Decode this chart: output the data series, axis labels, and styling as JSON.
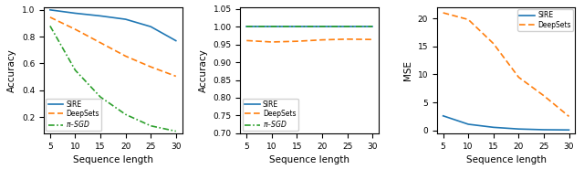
{
  "x": [
    5,
    10,
    15,
    20,
    25,
    30
  ],
  "plot1": {
    "ylabel": "Accuracy",
    "xlabel": "Sequence length",
    "ylim": [
      0.08,
      1.02
    ],
    "sire": [
      1.0,
      0.975,
      0.955,
      0.93,
      0.875,
      0.77
    ],
    "deepsets": [
      0.945,
      0.855,
      0.755,
      0.655,
      0.575,
      0.505
    ],
    "pisgd": [
      0.88,
      0.55,
      0.35,
      0.22,
      0.135,
      0.095
    ],
    "yticks": [
      0.2,
      0.4,
      0.6,
      0.8,
      1.0
    ]
  },
  "plot2": {
    "ylabel": "Accuracy",
    "xlabel": "Sequence length",
    "ylim": [
      0.7,
      1.055
    ],
    "sire": [
      1.0,
      1.0,
      1.0,
      1.0,
      1.0,
      1.0
    ],
    "deepsets": [
      0.961,
      0.957,
      0.959,
      0.963,
      0.965,
      0.964
    ],
    "pisgd": [
      1.0,
      1.0,
      1.0,
      1.0,
      1.0,
      1.0
    ],
    "yticks": [
      0.7,
      0.75,
      0.8,
      0.85,
      0.9,
      0.95,
      1.0,
      1.05
    ]
  },
  "plot3": {
    "ylabel": "MSE",
    "xlabel": "Sequence length",
    "ylim": [
      -0.5,
      22.0
    ],
    "sire": [
      2.6,
      1.1,
      0.55,
      0.25,
      0.12,
      0.08
    ],
    "deepsets": [
      21.0,
      19.8,
      15.5,
      9.5,
      6.2,
      2.5
    ],
    "yticks": [
      0.0,
      5.0,
      10.0,
      15.0,
      20.0
    ]
  },
  "colors": {
    "sire": "#1f77b4",
    "deepsets": "#ff7f0e",
    "pisgd": "#2ca02c"
  },
  "xticks": [
    5,
    10,
    15,
    20,
    25,
    30
  ]
}
